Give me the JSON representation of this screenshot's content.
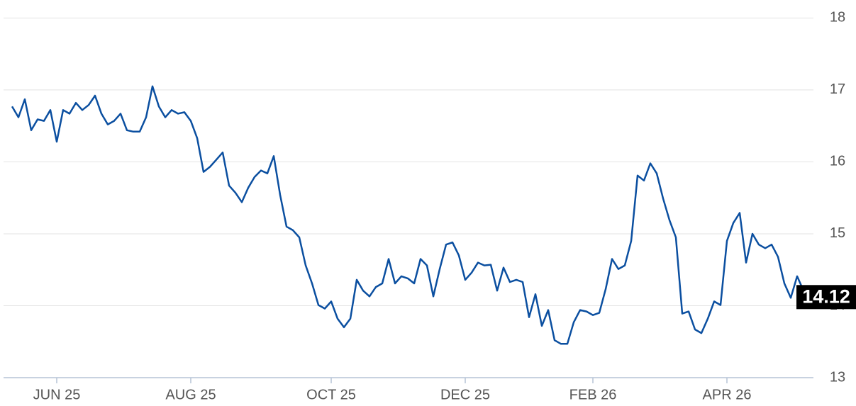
{
  "chart_data": {
    "type": "line",
    "color": "#0b4fa0",
    "grid": true,
    "categories": [
      null,
      null,
      null,
      null,
      null,
      null,
      null,
      "JUN 25",
      null,
      null,
      null,
      null,
      null,
      null,
      null,
      null,
      null,
      null,
      null,
      null,
      null,
      null,
      null,
      null,
      null,
      null,
      null,
      null,
      "AUG 25",
      null,
      null,
      null,
      null,
      null,
      null,
      null,
      null,
      null,
      null,
      null,
      null,
      null,
      null,
      null,
      null,
      null,
      null,
      null,
      null,
      null,
      "OCT 25",
      null,
      null,
      null,
      null,
      null,
      null,
      null,
      null,
      null,
      null,
      null,
      null,
      null,
      null,
      null,
      null,
      null,
      null,
      null,
      null,
      "DEC 25",
      null,
      null,
      null,
      null,
      null,
      null,
      null,
      null,
      null,
      null,
      null,
      null,
      null,
      null,
      null,
      null,
      null,
      null,
      null,
      "FEB 26",
      null,
      null,
      null,
      null,
      null,
      null,
      null,
      null,
      null,
      null,
      null,
      null,
      null,
      null,
      null,
      null,
      null,
      null,
      null,
      null,
      "APR 26",
      null,
      null,
      null,
      null,
      null,
      null,
      null,
      null,
      null,
      null,
      null,
      null,
      null
    ],
    "values": [
      16.77,
      16.62,
      16.87,
      16.44,
      16.59,
      16.57,
      16.72,
      16.28,
      16.72,
      16.67,
      16.82,
      16.72,
      16.79,
      16.92,
      16.67,
      16.52,
      16.57,
      16.67,
      16.44,
      16.42,
      16.42,
      16.62,
      17.05,
      16.77,
      16.62,
      16.72,
      16.67,
      16.69,
      16.57,
      16.33,
      15.86,
      15.93,
      16.03,
      16.13,
      15.67,
      15.57,
      15.44,
      15.64,
      15.79,
      15.88,
      15.84,
      16.08,
      15.54,
      15.1,
      15.05,
      14.95,
      14.56,
      14.31,
      14.01,
      13.96,
      14.06,
      13.82,
      13.7,
      13.82,
      14.36,
      14.21,
      14.13,
      14.26,
      14.31,
      14.65,
      14.31,
      14.41,
      14.38,
      14.31,
      14.65,
      14.56,
      14.13,
      14.51,
      14.85,
      14.88,
      14.7,
      14.36,
      14.46,
      14.6,
      14.56,
      14.57,
      14.21,
      14.53,
      14.33,
      14.36,
      14.33,
      13.84,
      14.16,
      13.72,
      13.94,
      13.52,
      13.47,
      13.47,
      13.77,
      13.94,
      13.92,
      13.87,
      13.9,
      14.23,
      14.65,
      14.51,
      14.56,
      14.9,
      15.81,
      15.74,
      15.98,
      15.84,
      15.49,
      15.19,
      14.95,
      13.89,
      13.92,
      13.67,
      13.62,
      13.82,
      14.06,
      14.01,
      14.9,
      15.15,
      15.29,
      14.6,
      15.0,
      14.85,
      14.8,
      14.85,
      14.68,
      14.31,
      14.11,
      14.41,
      14.21,
      14.12
    ],
    "ylim": [
      13,
      18.25
    ],
    "yticks": [
      13,
      14,
      15,
      16,
      17,
      18
    ]
  }
}
